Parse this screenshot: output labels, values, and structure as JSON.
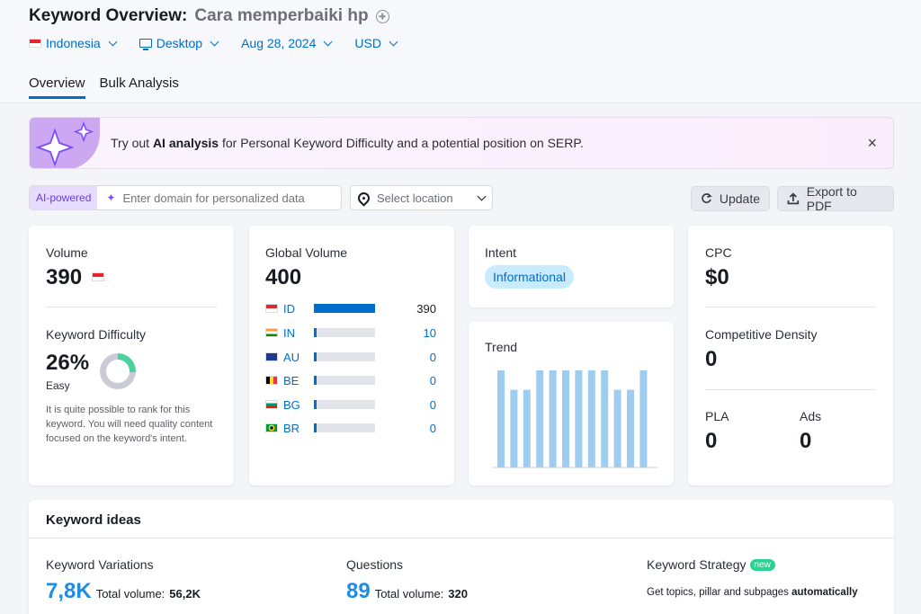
{
  "header": {
    "title_prefix": "Keyword Overview:",
    "keyword": "Cara memperbaiki hp"
  },
  "filters": {
    "country": "Indonesia",
    "device": "Desktop",
    "date": "Aug 28, 2024",
    "currency": "USD"
  },
  "tabs": [
    {
      "label": "Overview",
      "active": true
    },
    {
      "label": "Bulk Analysis",
      "active": false
    }
  ],
  "banner": {
    "prefix": "Try out ",
    "highlight": "AI analysis",
    "suffix": " for Personal Keyword Difficulty and a potential position on SERP.",
    "close_icon": "×"
  },
  "ai_search": {
    "badge": "AI-powered",
    "placeholder": "Enter domain for personalized data"
  },
  "location": {
    "placeholder": "Select location"
  },
  "buttons": {
    "update": "Update",
    "export": "Export to PDF"
  },
  "volume": {
    "label": "Volume",
    "value": "390"
  },
  "difficulty": {
    "label": "Keyword Difficulty",
    "value": "26%",
    "level": "Easy",
    "percent": 26,
    "description": "It is quite possible to rank for this keyword. You will need quality content focused on the keyword's intent.",
    "ring_color": "#4ad19e"
  },
  "global_volume": {
    "label": "Global Volume",
    "value": "400",
    "countries": [
      {
        "code": "ID",
        "value": "390",
        "fraction": 1.0
      },
      {
        "code": "IN",
        "value": "10",
        "fraction": 0.05
      },
      {
        "code": "AU",
        "value": "0",
        "fraction": 0.02
      },
      {
        "code": "BE",
        "value": "0",
        "fraction": 0.02
      },
      {
        "code": "BG",
        "value": "0",
        "fraction": 0.02
      },
      {
        "code": "BR",
        "value": "0",
        "fraction": 0.02
      }
    ]
  },
  "intent": {
    "label": "Intent",
    "value": "Informational"
  },
  "trend": {
    "label": "Trend",
    "values": [
      1.0,
      0.8,
      0.8,
      1.0,
      1.0,
      1.0,
      1.0,
      1.0,
      1.0,
      0.8,
      0.8,
      1.0
    ],
    "bar_color": "#9fcdf0"
  },
  "cpc": {
    "label": "CPC",
    "value": "$0"
  },
  "competitive_density": {
    "label": "Competitive Density",
    "value": "0"
  },
  "pla": {
    "label": "PLA",
    "value": "0"
  },
  "ads": {
    "label": "Ads",
    "value": "0"
  },
  "keyword_ideas": {
    "title": "Keyword ideas",
    "variations": {
      "label": "Keyword Variations",
      "count": "7,8K",
      "volume_label": "Total volume:",
      "volume": "56,2K"
    },
    "questions": {
      "label": "Questions",
      "count": "89",
      "volume_label": "Total volume:",
      "volume": "320"
    },
    "strategy": {
      "label": "Keyword Strategy",
      "badge": "new",
      "desc": "Get topics, pillar and subpages ",
      "desc_bold": "automatically"
    }
  }
}
